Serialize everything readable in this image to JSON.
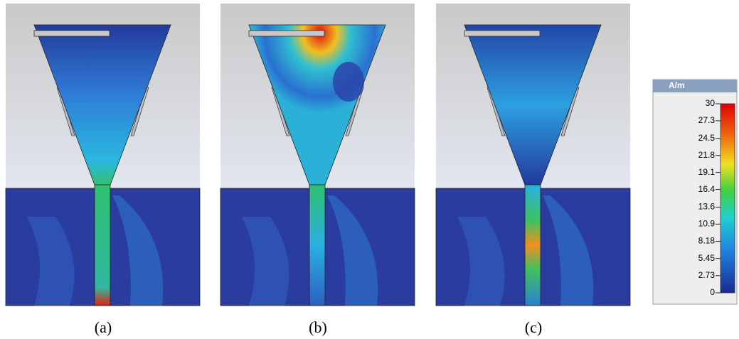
{
  "panels": [
    {
      "label": "(a)"
    },
    {
      "label": "(b)"
    },
    {
      "label": "(c)"
    }
  ],
  "colorbar": {
    "unit": "A/m",
    "ticks": [
      30,
      27.3,
      24.5,
      21.8,
      19.1,
      16.4,
      13.6,
      10.9,
      8.18,
      5.45,
      2.73,
      0
    ]
  }
}
